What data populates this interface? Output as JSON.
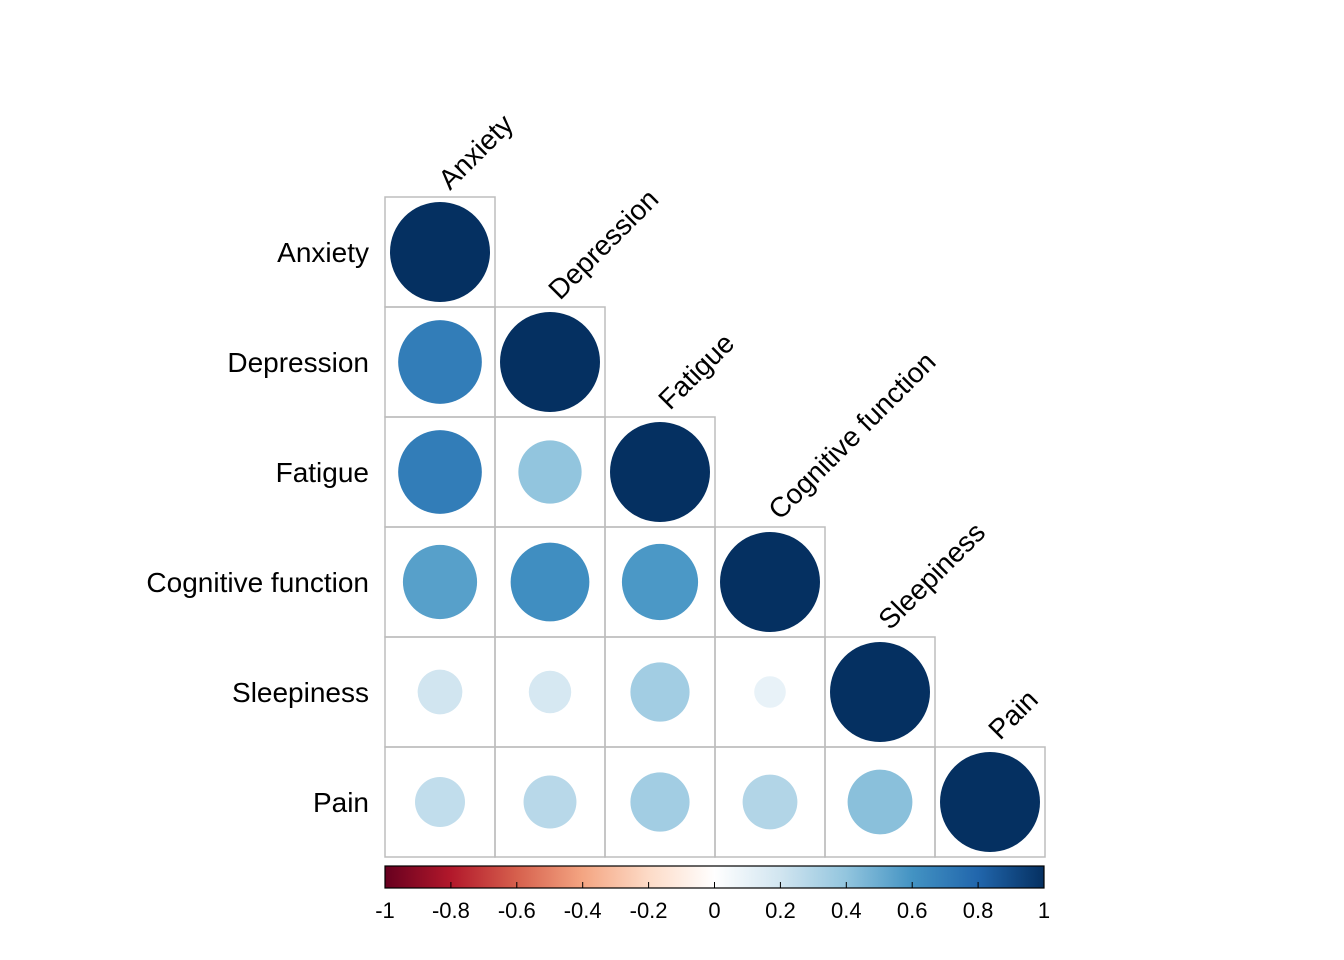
{
  "chart_data": {
    "type": "heatmap",
    "style": "correlation-circle-lower-triangle",
    "variables": [
      "Anxiety",
      "Depression",
      "Fatigue",
      "Cognitive function",
      "Sleepiness",
      "Pain"
    ],
    "matrix": [
      [
        1.0,
        0.7,
        0.7,
        0.55,
        0.2,
        0.25
      ],
      [
        0.7,
        1.0,
        0.4,
        0.62,
        0.18,
        0.28
      ],
      [
        0.7,
        0.4,
        1.0,
        0.58,
        0.35,
        0.35
      ],
      [
        0.55,
        0.62,
        0.58,
        1.0,
        0.1,
        0.3
      ],
      [
        0.2,
        0.18,
        0.35,
        0.1,
        1.0,
        0.42
      ],
      [
        0.25,
        0.28,
        0.35,
        0.3,
        0.42,
        1.0
      ]
    ],
    "colorbar": {
      "range": [
        -1,
        1
      ],
      "ticks": [
        "-1",
        "-0.8",
        "-0.6",
        "-0.4",
        "-0.2",
        "0",
        "0.2",
        "0.4",
        "0.6",
        "0.8",
        "1"
      ],
      "colors": [
        "#67001F",
        "#B2182B",
        "#D6604D",
        "#F4A582",
        "#FDDBC7",
        "#FFFFFF",
        "#D1E5F0",
        "#92C5DE",
        "#4393C3",
        "#2166AC",
        "#053061"
      ]
    },
    "grid": true,
    "legend": "bottom"
  }
}
